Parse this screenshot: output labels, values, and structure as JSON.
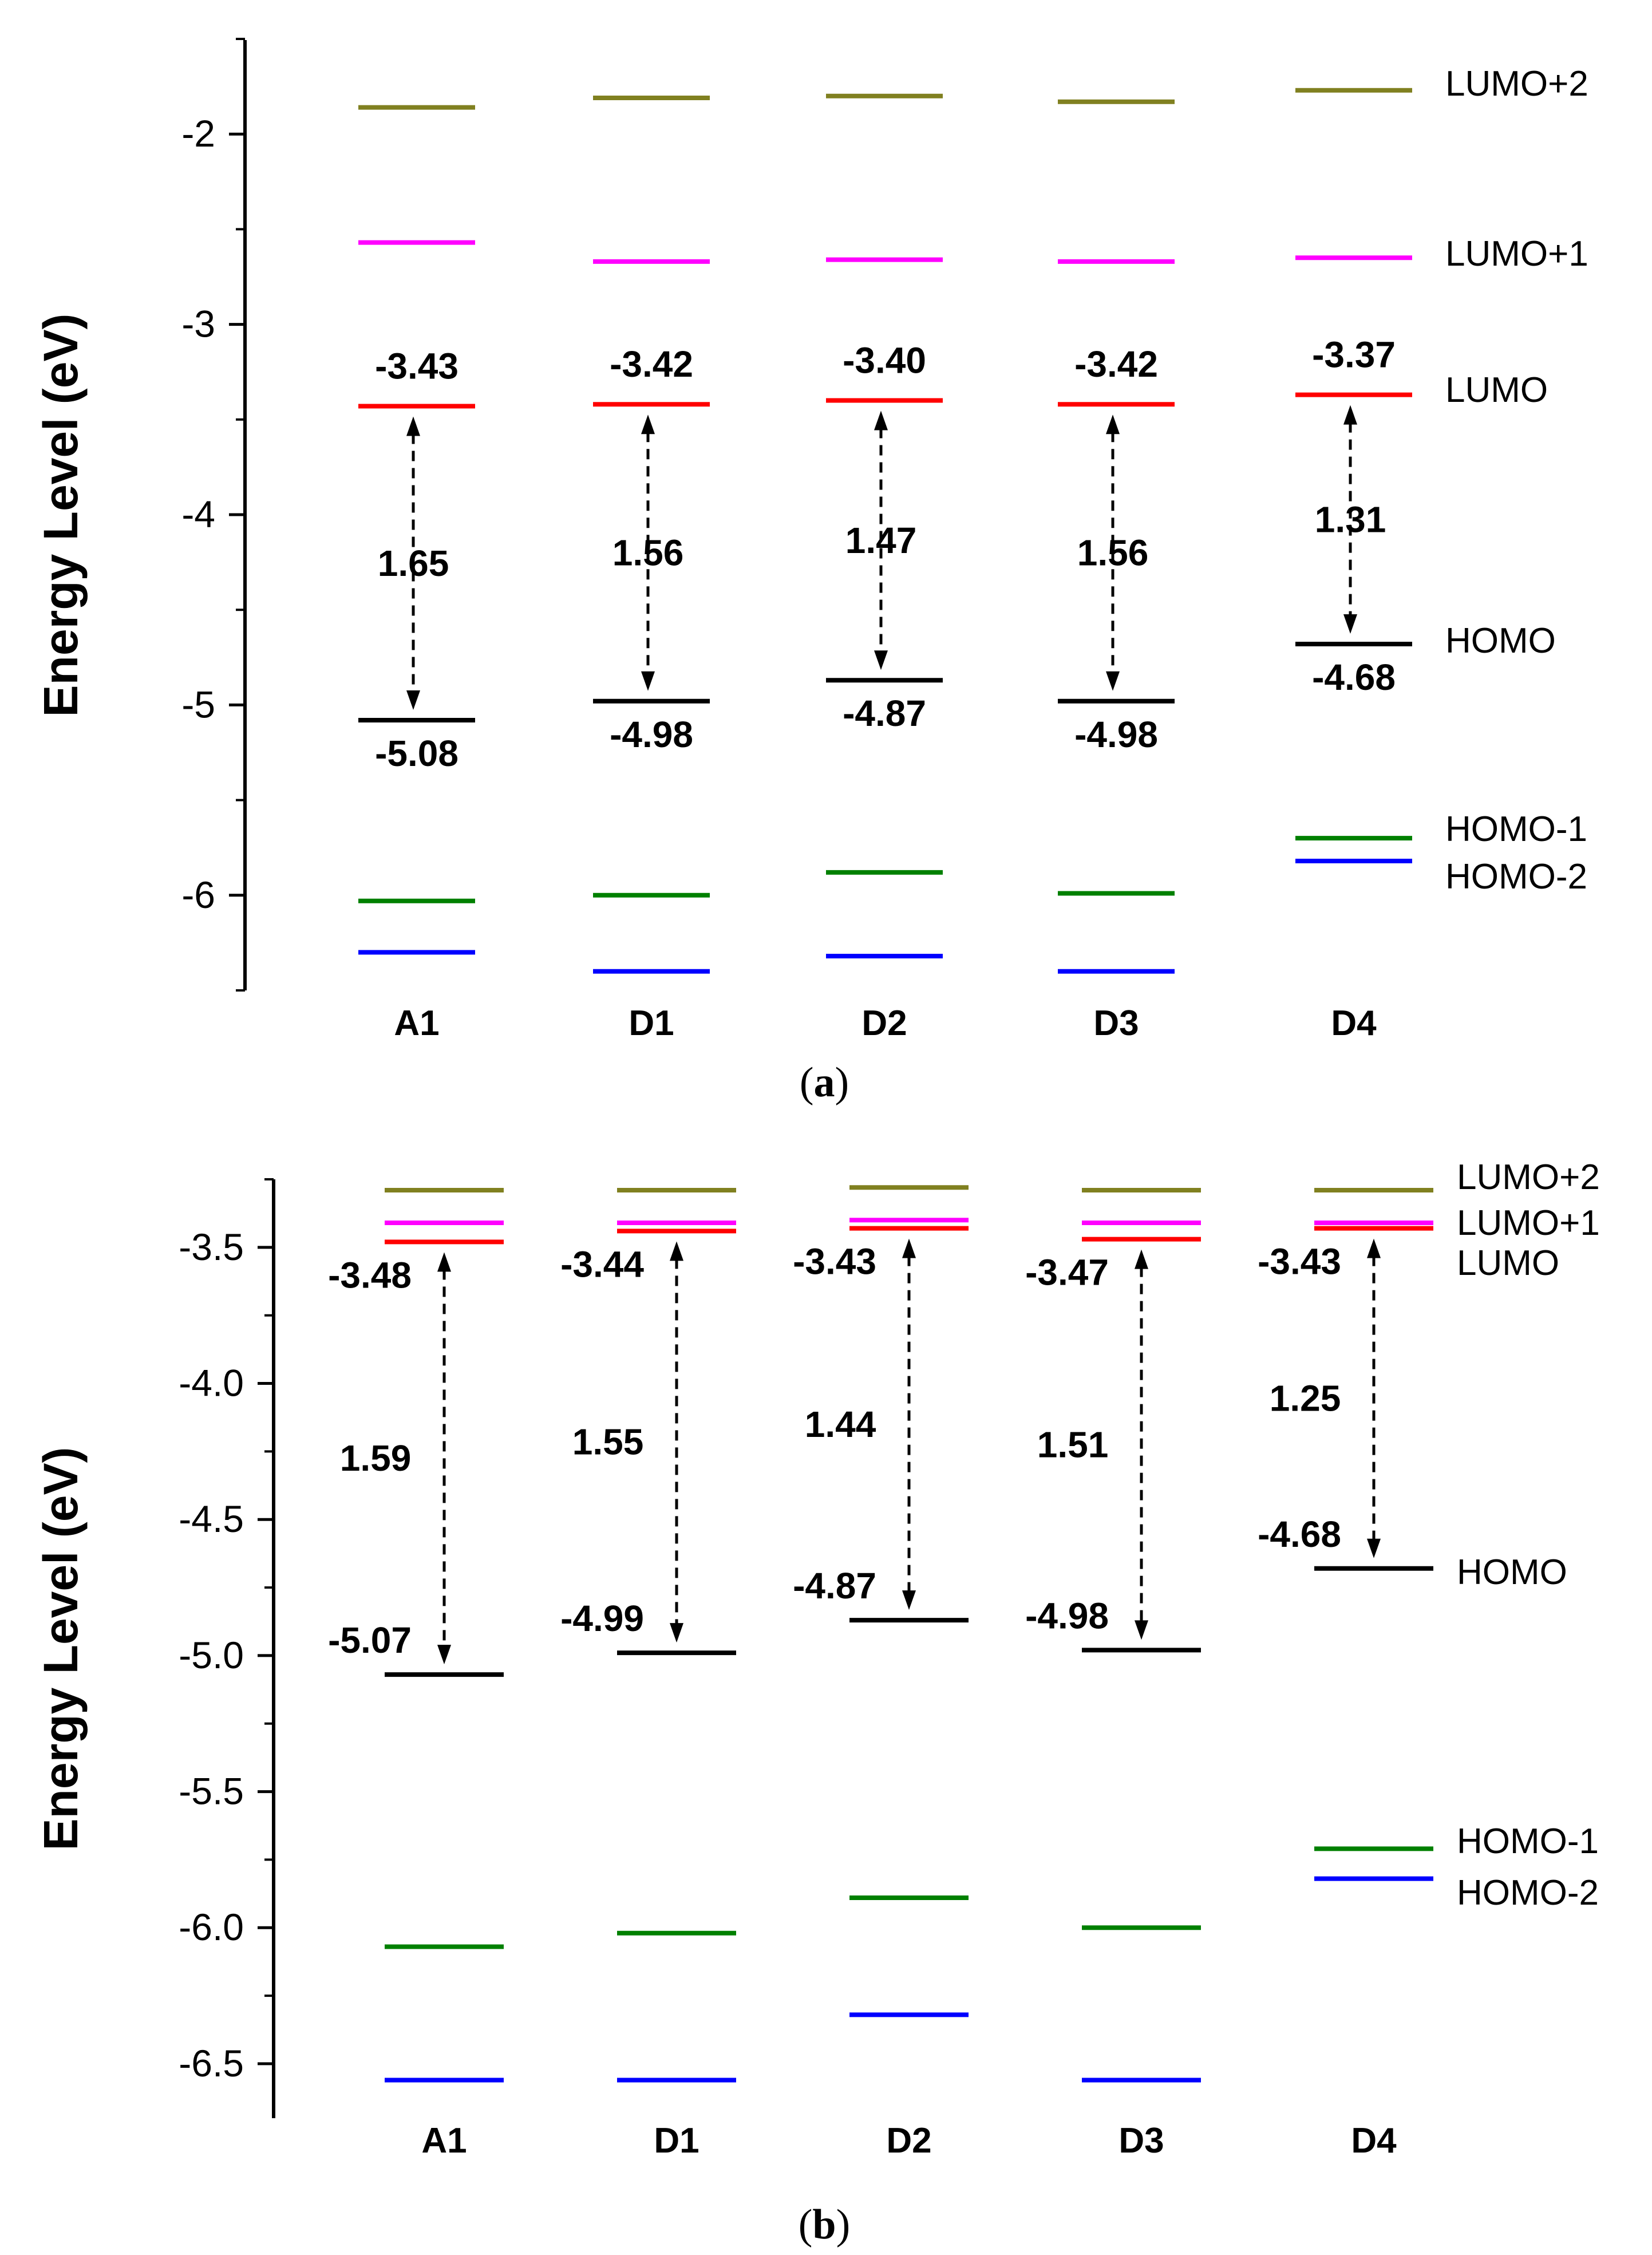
{
  "chart_data": [
    {
      "type": "line",
      "panel": "a",
      "caption_open": "(",
      "caption_letter": "a",
      "caption_close": ")",
      "ylabel": "Energy Level (eV)",
      "ylim": [
        -6.5,
        -1.5
      ],
      "yticks": [
        -6,
        -5,
        -4,
        -3,
        -2
      ],
      "ytick_labels": [
        "-6",
        "-5",
        "-4",
        "-3",
        "-2"
      ],
      "categories": [
        "A1",
        "D1",
        "D2",
        "D3",
        "D4"
      ],
      "colors": {
        "LUMO+2": "#808020",
        "LUMO+1": "#ff00ff",
        "LUMO": "#ff0000",
        "HOMO": "#000000",
        "HOMO-1": "#008000",
        "HOMO-2": "#0000ff"
      },
      "series": [
        {
          "name": "LUMO+2",
          "values": [
            -1.86,
            -1.81,
            -1.8,
            -1.83,
            -1.77
          ]
        },
        {
          "name": "LUMO+1",
          "values": [
            -2.57,
            -2.67,
            -2.66,
            -2.67,
            -2.65
          ]
        },
        {
          "name": "LUMO",
          "values": [
            -3.43,
            -3.42,
            -3.4,
            -3.42,
            -3.37
          ]
        },
        {
          "name": "HOMO",
          "values": [
            -5.08,
            -4.98,
            -4.87,
            -4.98,
            -4.68
          ]
        },
        {
          "name": "HOMO-1",
          "values": [
            -6.03,
            -6.0,
            -5.88,
            -5.99,
            -5.7
          ]
        },
        {
          "name": "HOMO-2",
          "values": [
            -6.3,
            -6.4,
            -6.32,
            -6.4,
            -5.82
          ]
        }
      ],
      "lumo_labels": [
        "-3.43",
        "-3.42",
        "-3.40",
        "-3.42",
        "-3.37"
      ],
      "homo_labels": [
        "-5.08",
        "-4.98",
        "-4.87",
        "-4.98",
        "-4.68"
      ],
      "gaps": [
        "1.65",
        "1.56",
        "1.47",
        "1.56",
        "1.31"
      ],
      "legend": [
        "LUMO+2",
        "LUMO+1",
        "LUMO",
        "HOMO",
        "HOMO-1",
        "HOMO-2"
      ]
    },
    {
      "type": "line",
      "panel": "b",
      "caption_open": "(",
      "caption_letter": "b",
      "caption_close": ")",
      "ylabel": "Energy Level (eV)",
      "ylim": [
        -6.7,
        -3.25
      ],
      "yticks": [
        -6.5,
        -6.0,
        -5.5,
        -5.0,
        -4.5,
        -4.0,
        -3.5
      ],
      "ytick_labels": [
        "-6.5",
        "-6.0",
        "-5.5",
        "-5.0",
        "-4.5",
        "-4.0",
        "-3.5"
      ],
      "categories": [
        "A1",
        "D1",
        "D2",
        "D3",
        "D4"
      ],
      "colors": {
        "LUMO+2": "#808020",
        "LUMO+1": "#ff00ff",
        "LUMO": "#ff0000",
        "HOMO": "#000000",
        "HOMO-1": "#008000",
        "HOMO-2": "#0000ff"
      },
      "series": [
        {
          "name": "LUMO+2",
          "values": [
            -3.29,
            -3.29,
            -3.28,
            -3.29,
            -3.29
          ]
        },
        {
          "name": "LUMO+1",
          "values": [
            -3.41,
            -3.41,
            -3.4,
            -3.41,
            -3.41
          ]
        },
        {
          "name": "LUMO",
          "values": [
            -3.48,
            -3.44,
            -3.43,
            -3.47,
            -3.43
          ]
        },
        {
          "name": "HOMO",
          "values": [
            -5.07,
            -4.99,
            -4.87,
            -4.98,
            -4.68
          ]
        },
        {
          "name": "HOMO-1",
          "values": [
            -6.07,
            -6.02,
            -5.89,
            -6.0,
            -5.71
          ]
        },
        {
          "name": "HOMO-2",
          "values": [
            -6.56,
            -6.56,
            -6.32,
            -6.56,
            -5.82
          ]
        }
      ],
      "lumo_labels": [
        "-3.48",
        "-3.44",
        "-3.43",
        "-3.47",
        "-3.43"
      ],
      "homo_labels": [
        "-5.07",
        "-4.99",
        "-4.87",
        "-4.98",
        "-4.68"
      ],
      "gaps": [
        "1.59",
        "1.55",
        "1.44",
        "1.51",
        "1.25"
      ],
      "legend": [
        "LUMO+2",
        "LUMO+1",
        "LUMO",
        "HOMO",
        "HOMO-1",
        "HOMO-2"
      ]
    }
  ]
}
